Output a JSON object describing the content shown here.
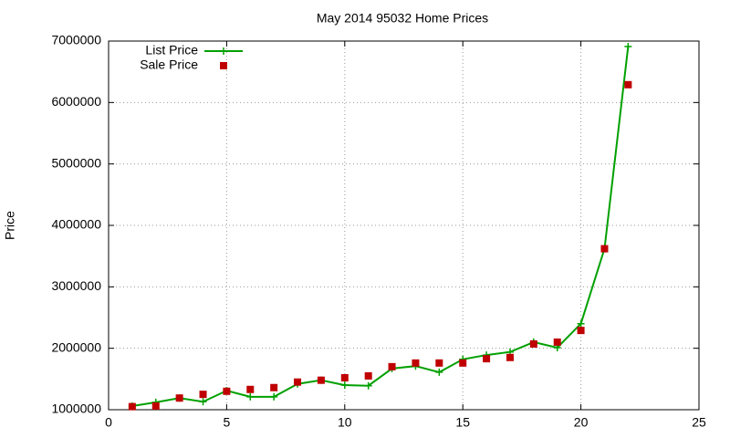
{
  "chart_data": {
    "type": "line",
    "title": "May 2014 95032 Home Prices",
    "ylabel": "Price",
    "x": [
      1,
      2,
      3,
      4,
      5,
      6,
      7,
      8,
      9,
      10,
      11,
      12,
      13,
      14,
      15,
      16,
      17,
      18,
      19,
      20,
      21,
      22
    ],
    "series": [
      {
        "name": "List Price",
        "color": "#00a000",
        "style": "linespoints",
        "values": [
          1060000,
          1120000,
          1190000,
          1130000,
          1310000,
          1210000,
          1210000,
          1420000,
          1480000,
          1400000,
          1390000,
          1670000,
          1710000,
          1610000,
          1820000,
          1890000,
          1940000,
          2100000,
          2010000,
          2400000,
          3620000,
          6910000
        ]
      },
      {
        "name": "Sale Price",
        "color": "#c00000",
        "style": "points",
        "values": [
          1050000,
          1060000,
          1190000,
          1250000,
          1300000,
          1330000,
          1360000,
          1450000,
          1480000,
          1520000,
          1550000,
          1700000,
          1760000,
          1760000,
          1760000,
          1830000,
          1850000,
          2070000,
          2100000,
          2290000,
          3620000,
          6290000
        ]
      }
    ],
    "xlim": [
      0,
      25
    ],
    "xticks": [
      0,
      5,
      10,
      15,
      20,
      25
    ],
    "ylim": [
      1000000,
      7000000
    ],
    "yticks": [
      1000000,
      2000000,
      3000000,
      4000000,
      5000000,
      6000000,
      7000000
    ],
    "grid": true,
    "legend": "top-left"
  }
}
